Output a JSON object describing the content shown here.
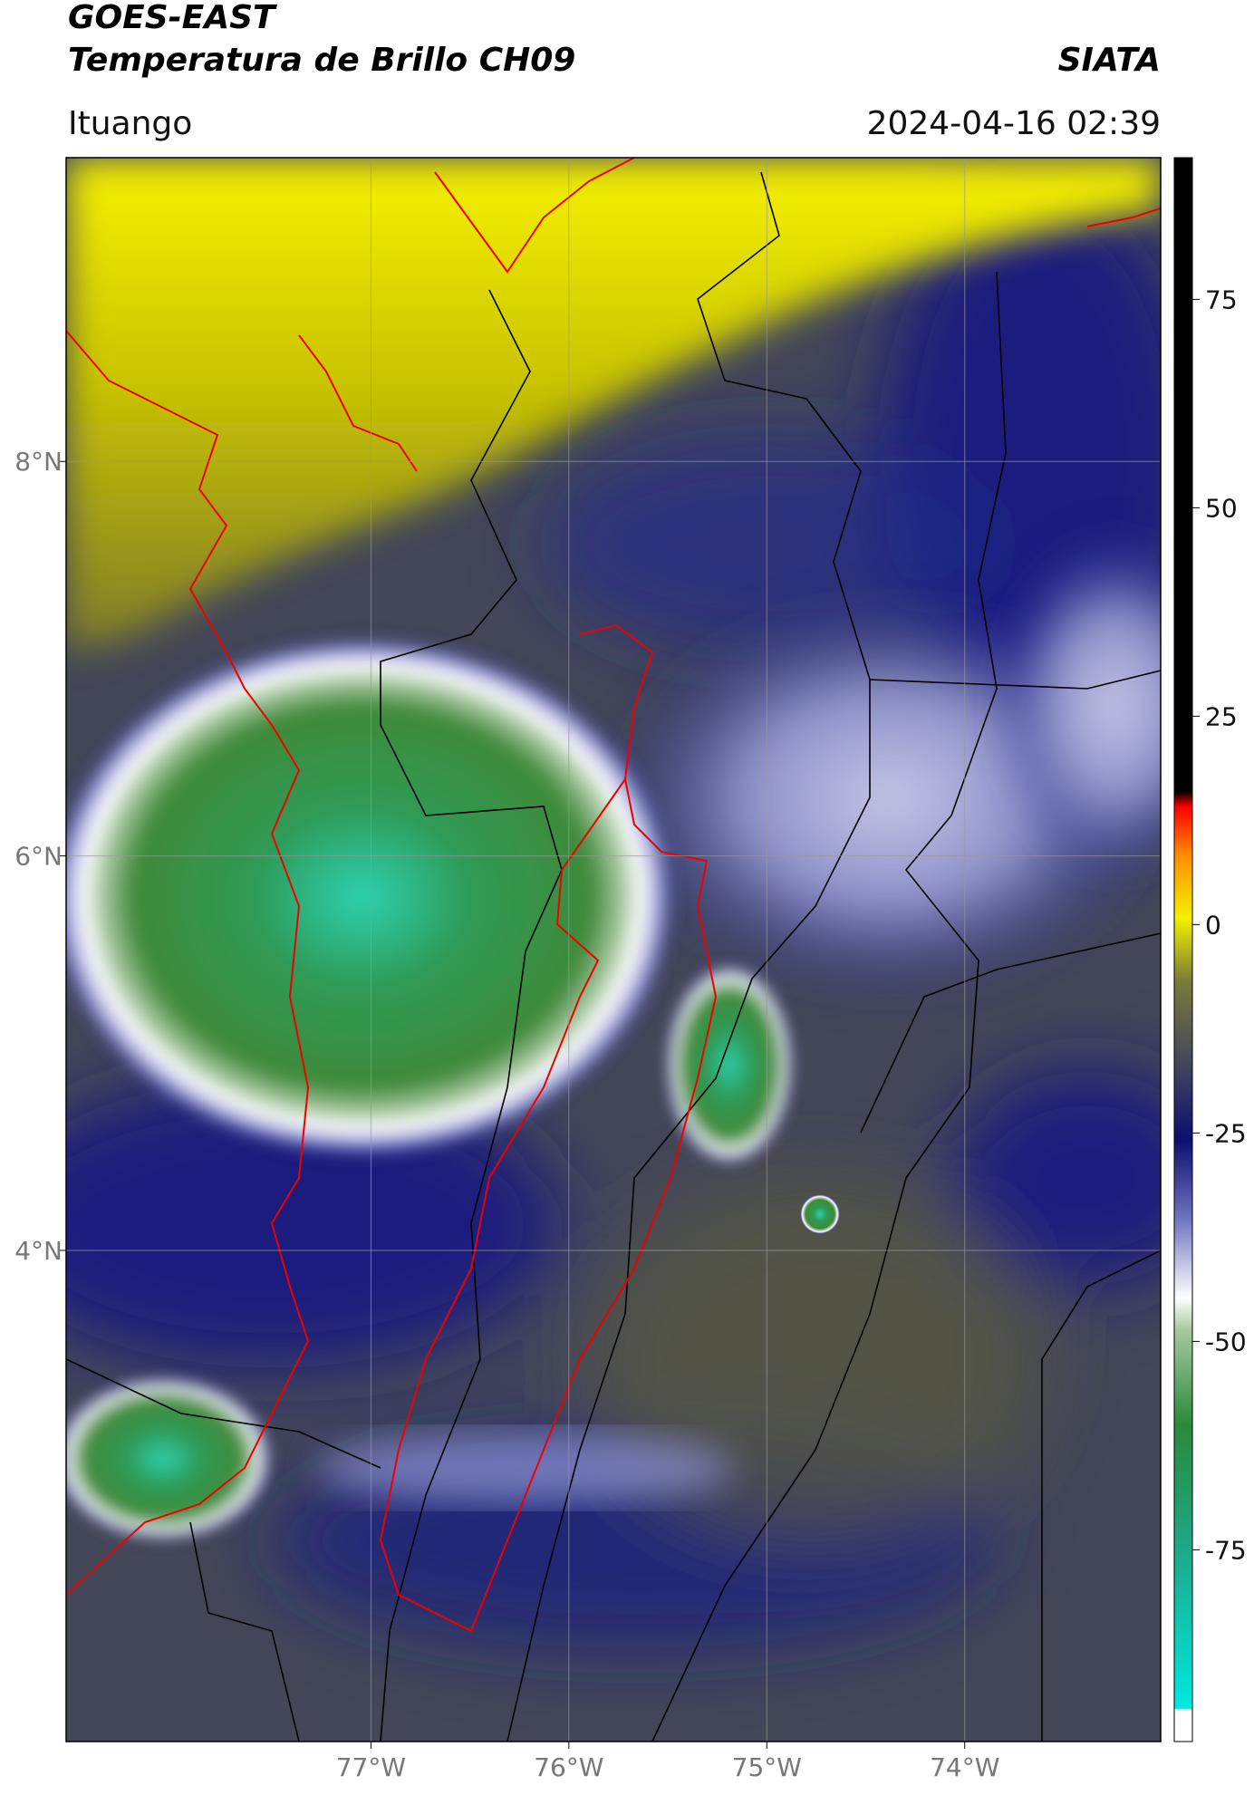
{
  "header": {
    "title": "GOES-EAST",
    "subtitle": "Temperatura de Brillo CH09",
    "brand": "SIATA",
    "location": "Ituango",
    "timestamp": "2024-04-16 02:39"
  },
  "map": {
    "xlim": [
      -78.54,
      -73.01
    ],
    "ylim": [
      1.51,
      9.54
    ],
    "xticks": [
      {
        "value": -77,
        "label": "77°W"
      },
      {
        "value": -76,
        "label": "76°W"
      },
      {
        "value": -75,
        "label": "75°W"
      },
      {
        "value": -74,
        "label": "74°W"
      }
    ],
    "yticks": [
      {
        "value": 8,
        "label": "8°N"
      },
      {
        "value": 6,
        "label": "6°N"
      },
      {
        "value": 4,
        "label": "4°N"
      }
    ]
  },
  "colorbar": {
    "lim": [
      -98,
      92
    ],
    "ticks": [
      75,
      50,
      25,
      0,
      -25,
      -50,
      -75
    ]
  }
}
